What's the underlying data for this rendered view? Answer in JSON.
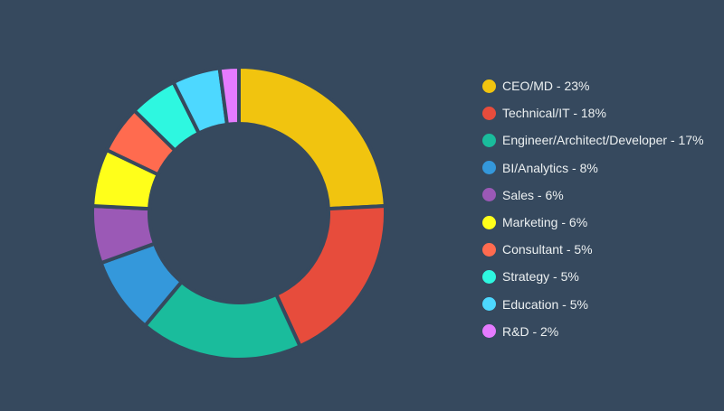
{
  "chart_data": {
    "type": "pie",
    "title": "",
    "categories": [
      "CEO/MD",
      "Technical/IT",
      "Engineer/Architect/Developer",
      "BI/Analytics",
      "Sales",
      "Marketing",
      "Consultant",
      "Strategy",
      "Education",
      "R&D"
    ],
    "values": [
      23,
      18,
      17,
      8,
      6,
      6,
      5,
      5,
      5,
      2
    ],
    "legend_labels": [
      "CEO/MD - 23%",
      "Technical/IT - 18%",
      "Engineer/Architect/Developer - 17%",
      "BI/Analytics - 8%",
      "Sales - 6%",
      "Marketing - 6%",
      "Consultant - 5%",
      "Strategy - 5%",
      "Education - 5%",
      "R&D - 2%"
    ],
    "colors": [
      "#f1c40f",
      "#e74c3c",
      "#1abc9c",
      "#3498db",
      "#9b59b6",
      "#ffff1a",
      "#ff6b4f",
      "#2ef7e0",
      "#4dd8ff",
      "#e57bff"
    ],
    "style": "donut",
    "legend_position": "right",
    "background": "#36495e"
  }
}
